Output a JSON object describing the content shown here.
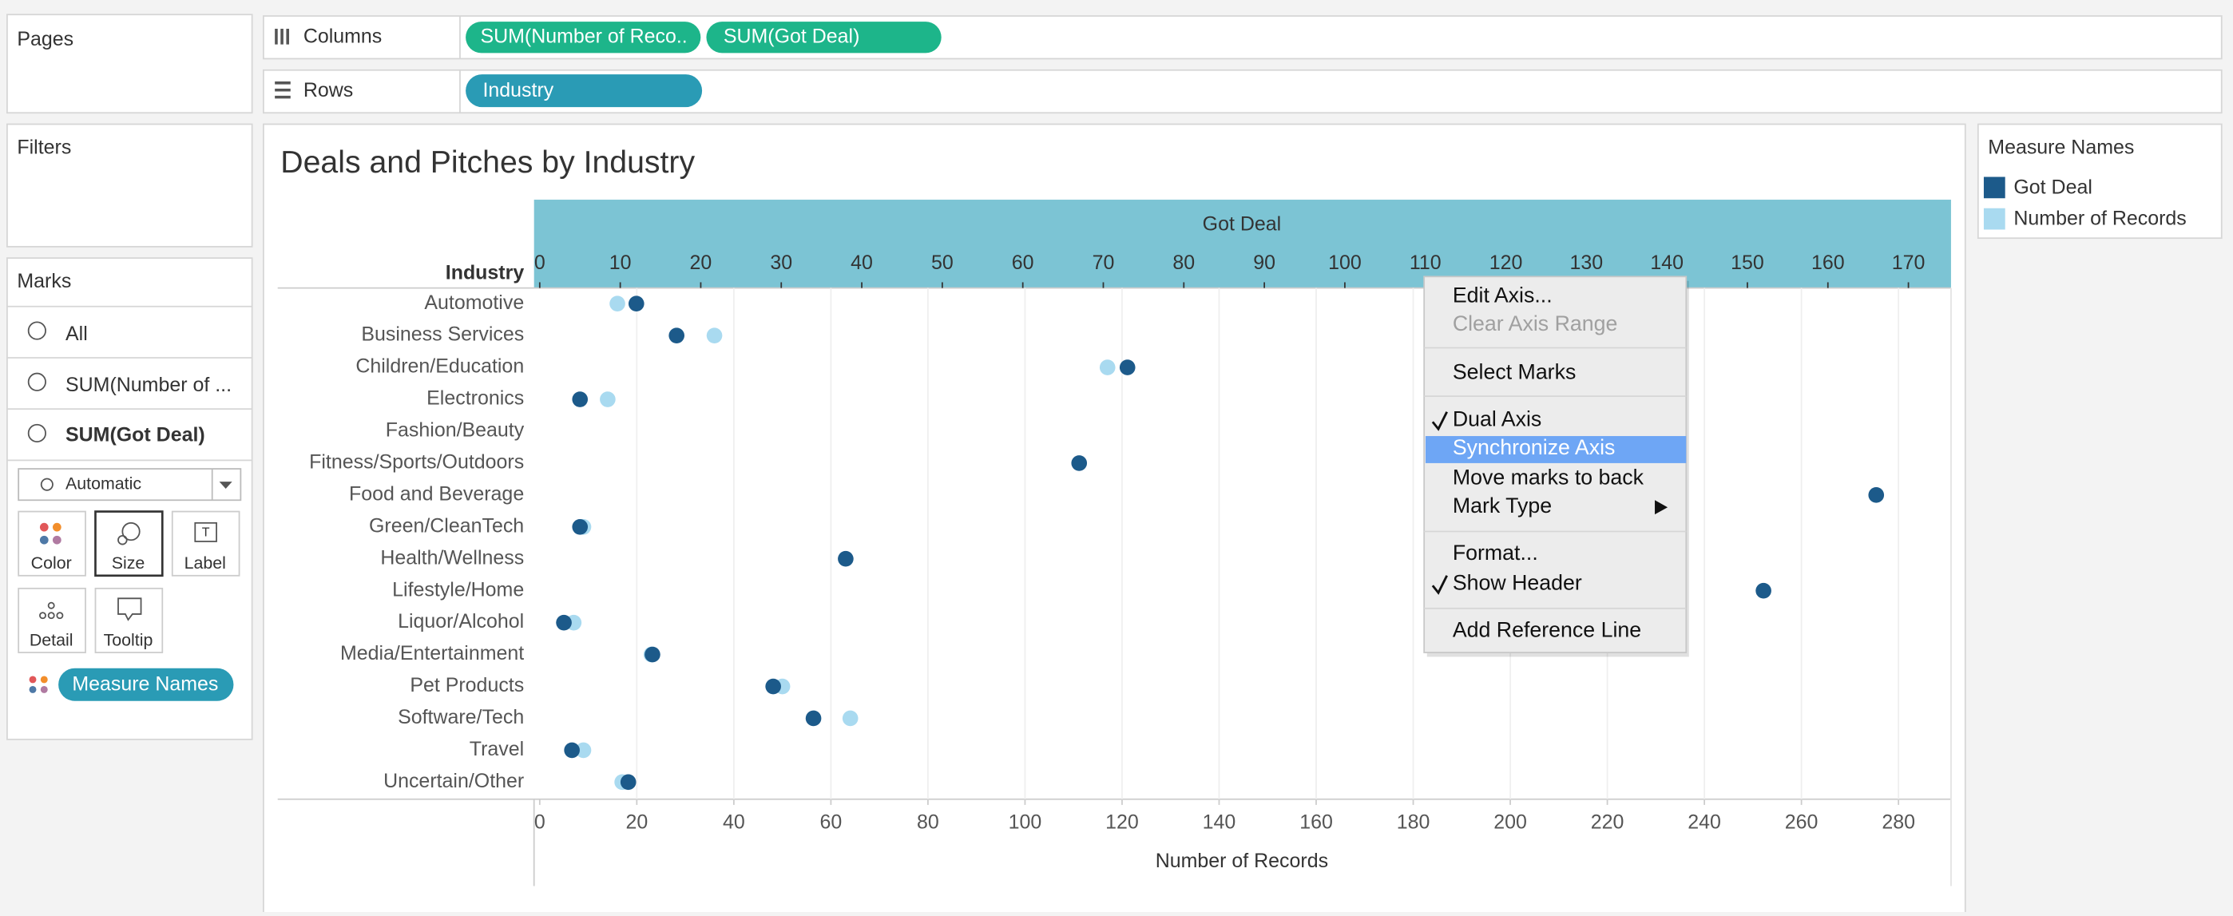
{
  "ui": {
    "shelves": {
      "pages": "Pages",
      "columns": "Columns",
      "rows": "Rows",
      "filters": "Filters",
      "column_pills": [
        "SUM(Number of Reco..",
        "SUM(Got Deal)"
      ],
      "row_pills": [
        "Industry"
      ]
    },
    "marks": {
      "title": "Marks",
      "cards": [
        "All",
        "SUM(Number of ...",
        "SUM(Got Deal)"
      ],
      "mark_type": "Automatic",
      "buttons": [
        "Color",
        "Size",
        "Label",
        "Detail",
        "Tooltip"
      ],
      "color_pill": "Measure Names"
    },
    "legend": {
      "title": "Measure Names"
    },
    "context_menu": [
      "Edit Axis...",
      "Clear Axis Range",
      "Select Marks",
      "Dual Axis",
      "Synchronize Axis",
      "Move marks to back",
      "Mark Type",
      "Format...",
      "Show Header",
      "Add Reference Line"
    ]
  },
  "chart_data": {
    "type": "dot",
    "title": "Deals and Pitches by Industry",
    "ylabel": "Industry",
    "xlabel": "Got Deal",
    "x2label": "Number of Records",
    "categories": [
      "Automotive",
      "Business Services",
      "Children/Education",
      "Electronics",
      "Fashion/Beauty",
      "Fitness/Sports/Outdoors",
      "Food and Beverage",
      "Green/CleanTech",
      "Health/Wellness",
      "Lifestyle/Home",
      "Liquor/Alcohol",
      "Media/Entertainment",
      "Pet Products",
      "Software/Tech",
      "Travel",
      "Uncertain/Other"
    ],
    "series": [
      {
        "name": "Number of Records",
        "color": "#a9daf0",
        "axis": "x2",
        "values": [
          16,
          36,
          117,
          14,
          null,
          null,
          null,
          9,
          null,
          null,
          7,
          23,
          50,
          64,
          9,
          17
        ]
      },
      {
        "name": "Got Deal",
        "color": "#1c5a8a",
        "axis": "x",
        "values": [
          12,
          17,
          73,
          5,
          null,
          67,
          166,
          5,
          38,
          152,
          3,
          14,
          29,
          34,
          4,
          11
        ]
      }
    ],
    "xlim": [
      0,
      176
    ],
    "xticks": [
      0,
      10,
      20,
      30,
      40,
      50,
      60,
      70,
      80,
      90,
      100,
      110,
      120,
      130,
      140,
      150,
      160,
      170
    ],
    "x2lim": [
      0,
      292
    ],
    "x2ticks": [
      0,
      20,
      40,
      60,
      80,
      100,
      120,
      140,
      160,
      180,
      200,
      220,
      240,
      260,
      280
    ],
    "grid": true
  }
}
